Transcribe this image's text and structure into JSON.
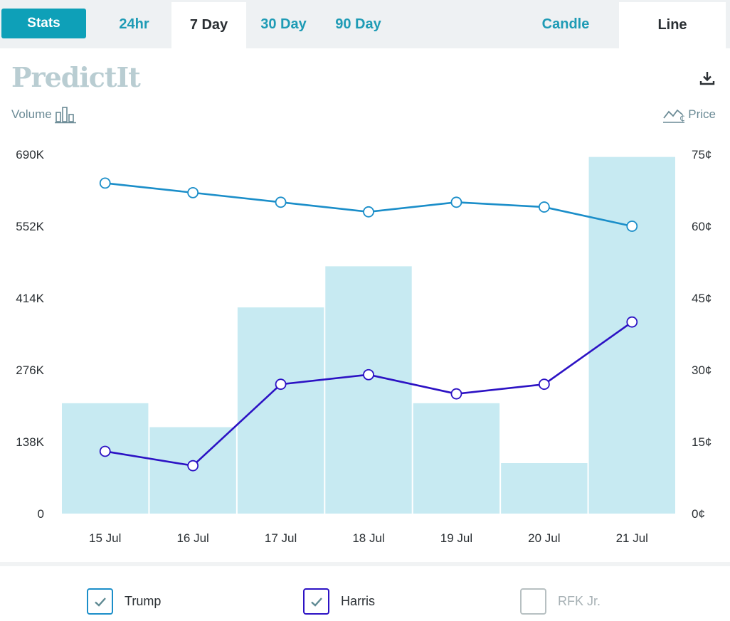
{
  "tabs": {
    "stats": "Stats",
    "h24": "24hr",
    "d7": "7 Day",
    "d30": "30 Day",
    "d90": "90 Day",
    "candle": "Candle",
    "line": "Line"
  },
  "logo_text": "PredictIt",
  "toggles": {
    "volume": "Volume",
    "price": "Price"
  },
  "colors": {
    "accent": "#1e9bb5",
    "trump": "#1b8ec9",
    "harris": "#2c12c4",
    "rfk": "#b7c0c2",
    "volume_bar": "#c7eaf2"
  },
  "legend": [
    {
      "name": "Trump",
      "checked": true,
      "color": "#1b8ec9"
    },
    {
      "name": "Harris",
      "checked": true,
      "color": "#2c12c4"
    },
    {
      "name": "RFK Jr.",
      "checked": false,
      "color": "#b7c0c2"
    }
  ],
  "chart_data": {
    "type": "bar+line",
    "categories": [
      "15 Jul",
      "16 Jul",
      "17 Jul",
      "18 Jul",
      "19 Jul",
      "20 Jul",
      "21 Jul"
    ],
    "volume": {
      "name": "Volume",
      "values": [
        212000,
        166000,
        396000,
        475000,
        212000,
        97000,
        685000
      ],
      "ylim": [
        0,
        690000
      ],
      "ticks": [
        "0",
        "138K",
        "276K",
        "414K",
        "552K",
        "690K"
      ]
    },
    "price": {
      "ylim": [
        0,
        75
      ],
      "ticks": [
        "0¢",
        "15¢",
        "30¢",
        "45¢",
        "60¢",
        "75¢"
      ],
      "series": [
        {
          "name": "Trump",
          "values": [
            69,
            67,
            65,
            63,
            65,
            64,
            60
          ]
        },
        {
          "name": "Harris",
          "values": [
            13,
            10,
            27,
            29,
            25,
            27,
            40
          ]
        }
      ]
    }
  }
}
